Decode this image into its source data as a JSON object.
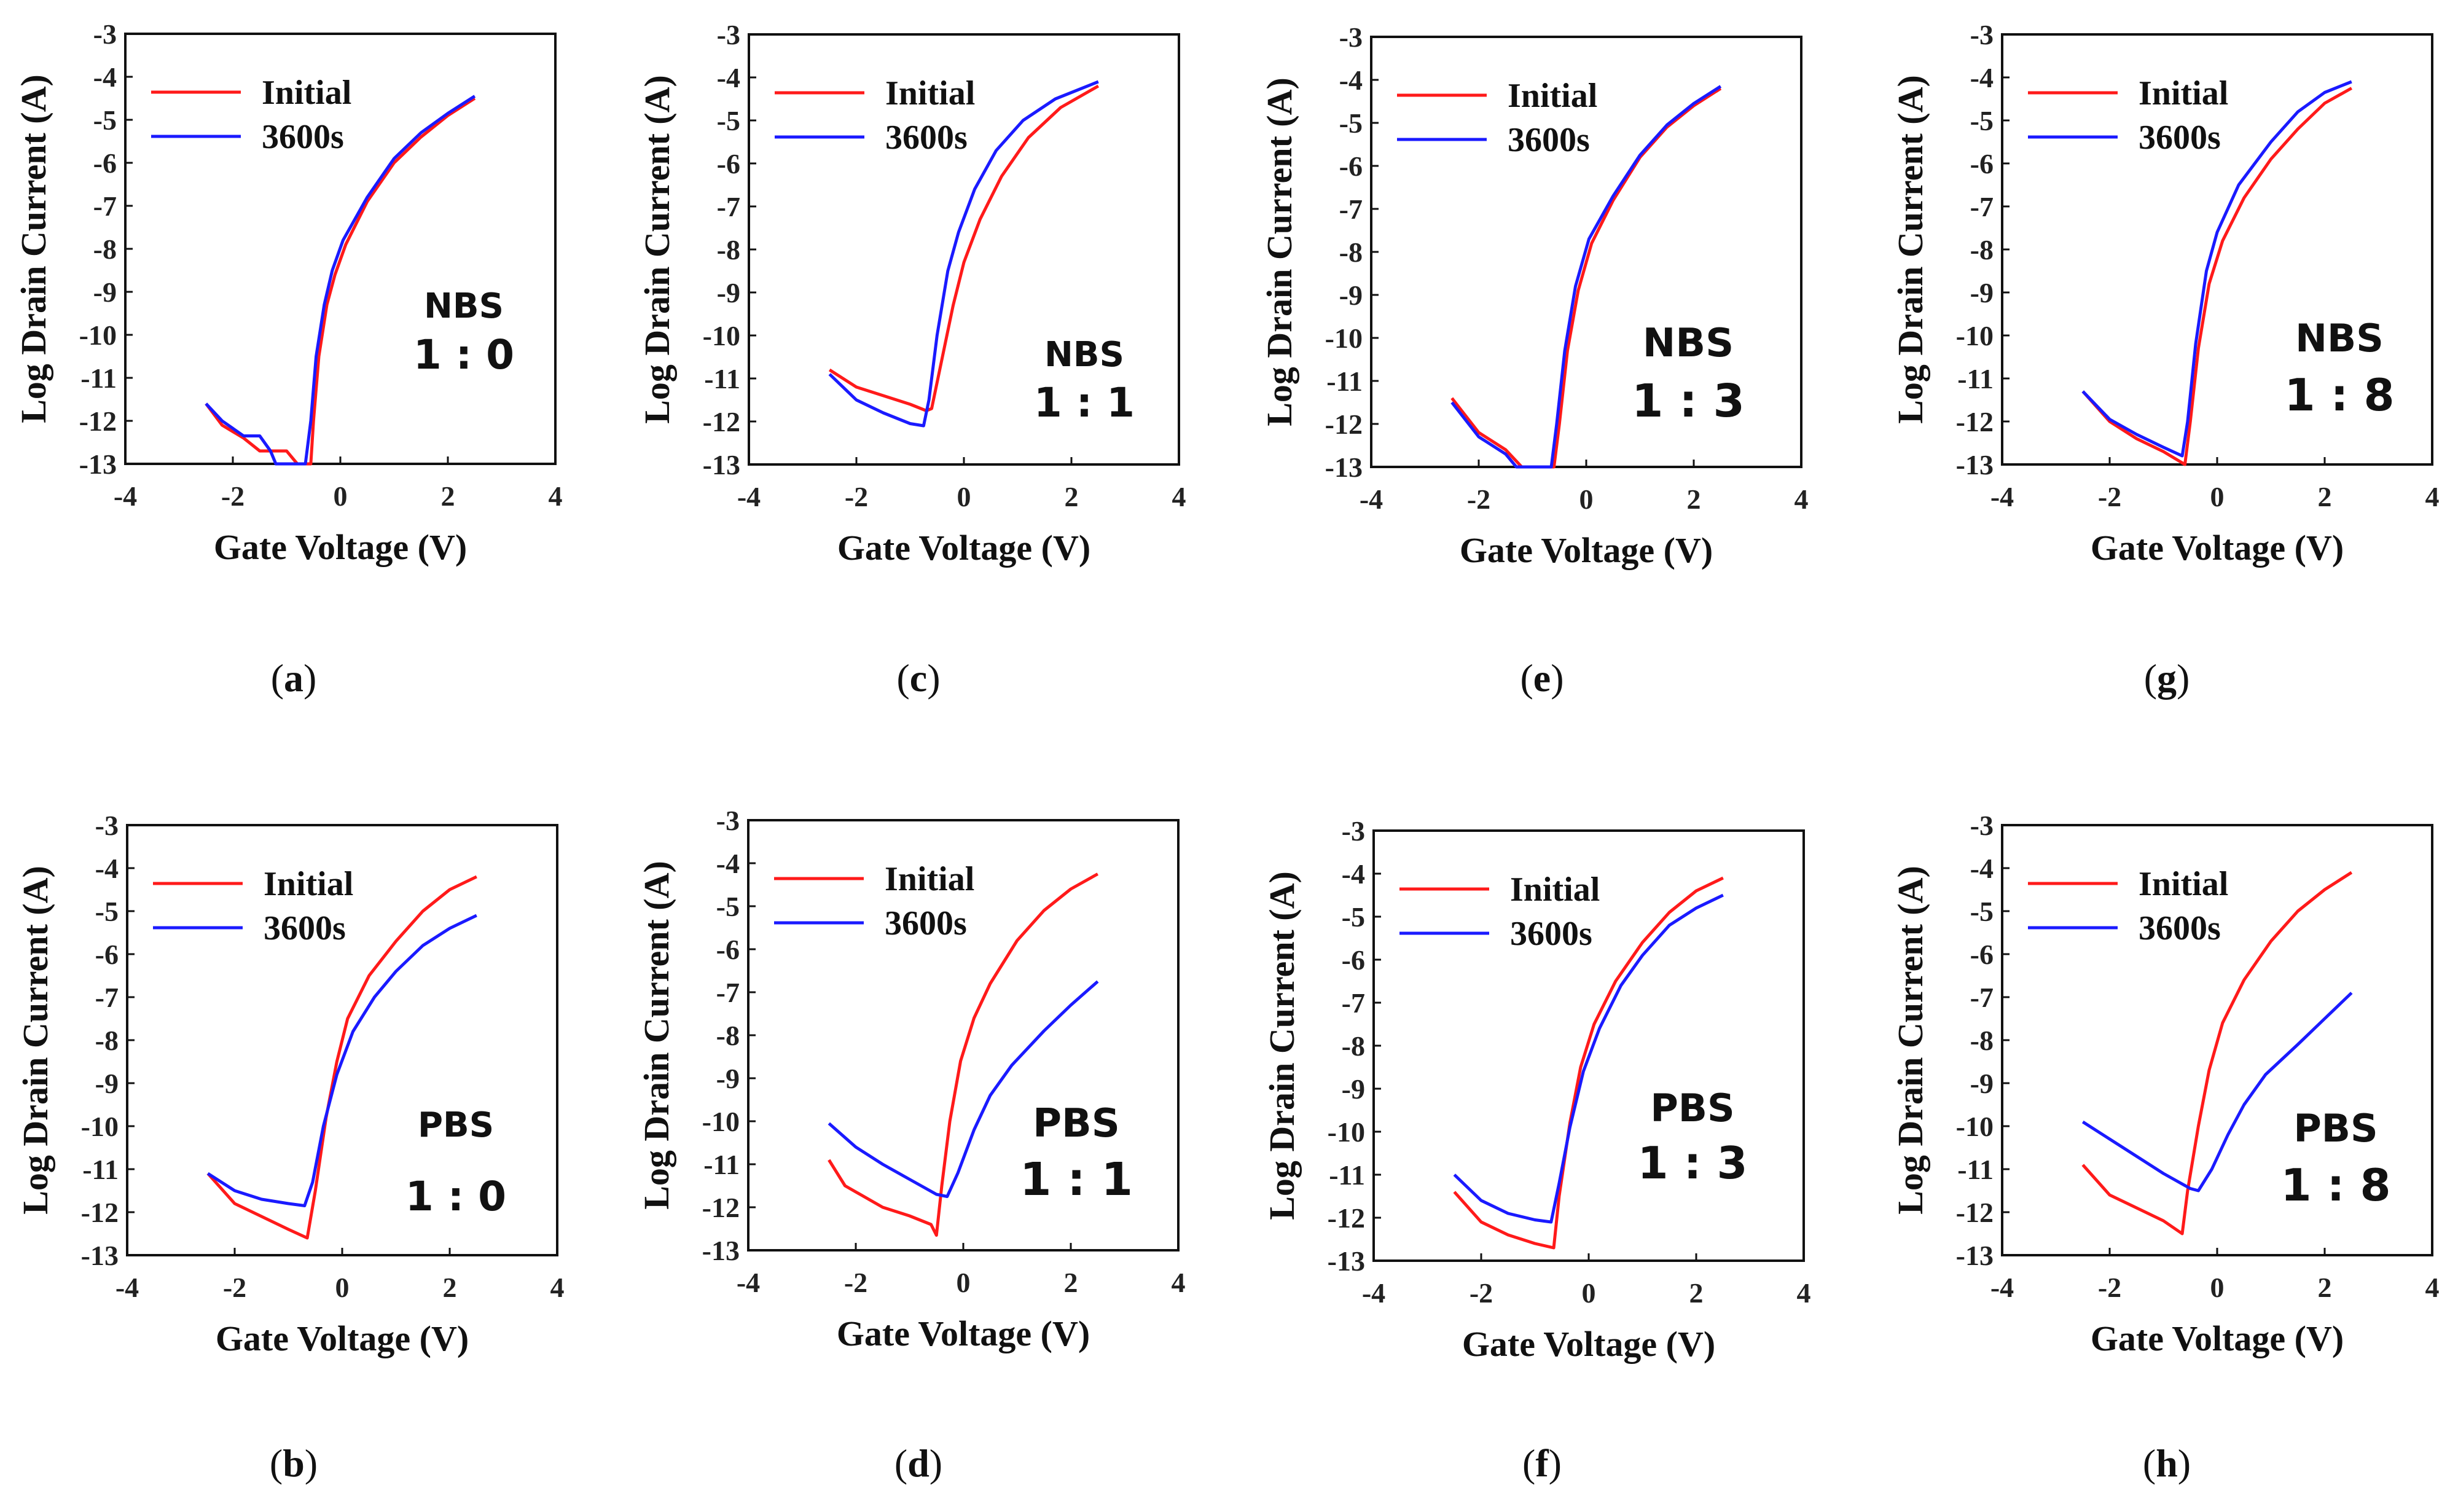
{
  "chart_data": [
    {
      "id": "a",
      "type": "line",
      "caption_letter": "a",
      "annotation": [
        "NBS",
        "1 : 0"
      ],
      "xlabel": "Gate Voltage (V)",
      "ylabel": "Log Drain Current (A)",
      "xlim": [
        -4,
        4
      ],
      "ylim": [
        -13,
        -3
      ],
      "xticks": [
        "-4",
        "-2",
        "0",
        "2",
        "4"
      ],
      "yticks": [
        "-3",
        "-4",
        "-5",
        "-6",
        "-7",
        "-8",
        "-9",
        "-10",
        "-11",
        "-12",
        "-13"
      ],
      "legend": {
        "placement": "top-left"
      },
      "series": [
        {
          "name": "Initial",
          "color": "#ff1a1a",
          "x": [
            -2.5,
            -2.2,
            -1.8,
            -1.5,
            -1.0,
            -0.8,
            -0.55,
            -0.5,
            -0.4,
            -0.25,
            -0.1,
            0.1,
            0.5,
            1,
            1.5,
            2,
            2.5
          ],
          "y": [
            -11.6,
            -12.1,
            -12.4,
            -12.7,
            -12.7,
            -13,
            -13,
            -12,
            -10.5,
            -9.3,
            -8.6,
            -7.9,
            -6.9,
            -6.0,
            -5.4,
            -4.9,
            -4.5
          ]
        },
        {
          "name": "3600s",
          "color": "#1a1aff",
          "x": [
            -2.5,
            -2.2,
            -1.8,
            -1.5,
            -1.3,
            -1.2,
            -0.65,
            -0.55,
            -0.45,
            -0.3,
            -0.15,
            0.05,
            0.5,
            1,
            1.5,
            2,
            2.5
          ],
          "y": [
            -11.6,
            -12.0,
            -12.35,
            -12.35,
            -12.7,
            -13,
            -13,
            -12,
            -10.5,
            -9.3,
            -8.5,
            -7.8,
            -6.8,
            -5.9,
            -5.3,
            -4.85,
            -4.45
          ]
        }
      ]
    },
    {
      "id": "c",
      "type": "line",
      "caption_letter": "c",
      "annotation": [
        "NBS",
        "1 : 1"
      ],
      "xlabel": "Gate Voltage (V)",
      "ylabel": "Log Drain Current (A)",
      "xlim": [
        -4,
        4
      ],
      "ylim": [
        -13,
        -3
      ],
      "xticks": [
        "-4",
        "-2",
        "0",
        "2",
        "4"
      ],
      "yticks": [
        "-3",
        "-4",
        "-5",
        "-6",
        "-7",
        "-8",
        "-9",
        "-10",
        "-11",
        "-12",
        "-13"
      ],
      "legend": {
        "placement": "top-left"
      },
      "series": [
        {
          "name": "Initial",
          "color": "#ff1a1a",
          "x": [
            -2.5,
            -2,
            -1.5,
            -1,
            -0.7,
            -0.6,
            -0.4,
            -0.2,
            0,
            0.3,
            0.7,
            1.2,
            1.8,
            2.5
          ],
          "y": [
            -10.8,
            -11.2,
            -11.4,
            -11.6,
            -11.75,
            -11.7,
            -10.5,
            -9.3,
            -8.3,
            -7.3,
            -6.3,
            -5.4,
            -4.7,
            -4.2
          ]
        },
        {
          "name": "3600s",
          "color": "#1a1aff",
          "x": [
            -2.5,
            -2,
            -1.5,
            -1,
            -0.75,
            -0.65,
            -0.5,
            -0.3,
            -0.1,
            0.2,
            0.6,
            1.1,
            1.7,
            2.5
          ],
          "y": [
            -10.9,
            -11.5,
            -11.8,
            -12.05,
            -12.1,
            -11.5,
            -10,
            -8.5,
            -7.6,
            -6.6,
            -5.7,
            -5,
            -4.5,
            -4.1
          ]
        }
      ]
    },
    {
      "id": "e",
      "type": "line",
      "caption_letter": "e",
      "annotation": [
        "NBS",
        "1 : 3"
      ],
      "xlabel": "Gate Voltage (V)",
      "ylabel": "Log Drain Current (A)",
      "xlim": [
        -4,
        4
      ],
      "ylim": [
        -13,
        -3
      ],
      "xticks": [
        "-4",
        "-2",
        "0",
        "2",
        "4"
      ],
      "yticks": [
        "-3",
        "-4",
        "-5",
        "-6",
        "-7",
        "-8",
        "-9",
        "-10",
        "-11",
        "-12",
        "-13"
      ],
      "legend": {
        "placement": "top-left"
      },
      "series": [
        {
          "name": "Initial",
          "color": "#ff1a1a",
          "x": [
            -2.5,
            -2,
            -1.5,
            -1.2,
            -0.6,
            -0.5,
            -0.35,
            -0.15,
            0.1,
            0.5,
            1,
            1.5,
            2,
            2.5
          ],
          "y": [
            -11.4,
            -12.2,
            -12.6,
            -13,
            -13,
            -12,
            -10.3,
            -8.9,
            -7.8,
            -6.8,
            -5.8,
            -5.1,
            -4.6,
            -4.2
          ]
        },
        {
          "name": "3600s",
          "color": "#1a1aff",
          "x": [
            -2.5,
            -2,
            -1.5,
            -1.3,
            -0.65,
            -0.55,
            -0.4,
            -0.2,
            0.05,
            0.5,
            1,
            1.5,
            2,
            2.5
          ],
          "y": [
            -11.5,
            -12.3,
            -12.7,
            -13,
            -13,
            -12,
            -10.3,
            -8.8,
            -7.7,
            -6.7,
            -5.75,
            -5.05,
            -4.55,
            -4.15
          ]
        }
      ]
    },
    {
      "id": "g",
      "type": "line",
      "caption_letter": "g",
      "annotation": [
        "NBS",
        "1 : 8"
      ],
      "xlabel": "Gate Voltage (V)",
      "ylabel": "Log Drain Current (A)",
      "xlim": [
        -4,
        4
      ],
      "ylim": [
        -13,
        -3
      ],
      "xticks": [
        "-4",
        "-2",
        "0",
        "2",
        "4"
      ],
      "yticks": [
        "-3",
        "-4",
        "-5",
        "-6",
        "-7",
        "-8",
        "-9",
        "-10",
        "-11",
        "-12",
        "-13"
      ],
      "legend": {
        "placement": "top-left"
      },
      "series": [
        {
          "name": "Initial",
          "color": "#ff1a1a",
          "x": [
            -2.5,
            -2,
            -1.5,
            -1,
            -0.6,
            -0.5,
            -0.35,
            -0.15,
            0.1,
            0.5,
            1,
            1.5,
            2,
            2.5
          ],
          "y": [
            -11.3,
            -12,
            -12.4,
            -12.7,
            -13,
            -12,
            -10.3,
            -8.8,
            -7.8,
            -6.8,
            -5.9,
            -5.2,
            -4.6,
            -4.25
          ]
        },
        {
          "name": "3600s",
          "color": "#1a1aff",
          "x": [
            -2.5,
            -2,
            -1.5,
            -1,
            -0.65,
            -0.55,
            -0.4,
            -0.2,
            0,
            0.4,
            1,
            1.5,
            2,
            2.5
          ],
          "y": [
            -11.3,
            -11.95,
            -12.3,
            -12.6,
            -12.8,
            -12,
            -10.2,
            -8.5,
            -7.6,
            -6.5,
            -5.5,
            -4.8,
            -4.35,
            -4.1
          ]
        }
      ]
    },
    {
      "id": "b",
      "type": "line",
      "caption_letter": "b",
      "annotation": [
        "PBS",
        "1 : 0"
      ],
      "xlabel": "Gate Voltage (V)",
      "ylabel": "Log Drain Current (A)",
      "xlim": [
        -4,
        4
      ],
      "ylim": [
        -13,
        -3
      ],
      "xticks": [
        "-4",
        "-2",
        "0",
        "2",
        "4"
      ],
      "yticks": [
        "-3",
        "-4",
        "-5",
        "-6",
        "-7",
        "-8",
        "-9",
        "-10",
        "-11",
        "-12",
        "-13"
      ],
      "legend": {
        "placement": "top-left"
      },
      "series": [
        {
          "name": "Initial",
          "color": "#ff1a1a",
          "x": [
            -2.5,
            -2,
            -1.5,
            -1,
            -0.65,
            -0.5,
            -0.3,
            -0.1,
            0.1,
            0.5,
            1,
            1.5,
            2,
            2.5
          ],
          "y": [
            -11.1,
            -11.8,
            -12.1,
            -12.4,
            -12.6,
            -11.5,
            -9.8,
            -8.5,
            -7.5,
            -6.5,
            -5.7,
            -5,
            -4.5,
            -4.2
          ]
        },
        {
          "name": "3600s",
          "color": "#1a1aff",
          "x": [
            -2.5,
            -2,
            -1.5,
            -1,
            -0.7,
            -0.55,
            -0.35,
            -0.1,
            0.2,
            0.6,
            1,
            1.5,
            2,
            2.5
          ],
          "y": [
            -11.1,
            -11.5,
            -11.7,
            -11.8,
            -11.85,
            -11.3,
            -10,
            -8.8,
            -7.8,
            -7,
            -6.4,
            -5.8,
            -5.4,
            -5.1
          ]
        }
      ]
    },
    {
      "id": "d",
      "type": "line",
      "caption_letter": "d",
      "annotation": [
        "PBS",
        "1 : 1"
      ],
      "xlabel": "Gate Voltage (V)",
      "ylabel": "Log Drain Current (A)",
      "xlim": [
        -4,
        4
      ],
      "ylim": [
        -13,
        -3
      ],
      "xticks": [
        "-4",
        "-2",
        "0",
        "2",
        "4"
      ],
      "yticks": [
        "-3",
        "-4",
        "-5",
        "-6",
        "-7",
        "-8",
        "-9",
        "-10",
        "-11",
        "-12",
        "-13"
      ],
      "legend": {
        "placement": "top-left"
      },
      "series": [
        {
          "name": "Initial",
          "color": "#ff1a1a",
          "x": [
            -2.5,
            -2.2,
            -1.5,
            -1,
            -0.6,
            -0.5,
            -0.4,
            -0.25,
            -0.05,
            0.2,
            0.5,
            1,
            1.5,
            2,
            2.5
          ],
          "y": [
            -10.9,
            -11.5,
            -12,
            -12.2,
            -12.4,
            -12.65,
            -11.5,
            -10,
            -8.6,
            -7.6,
            -6.8,
            -5.8,
            -5.1,
            -4.6,
            -4.25
          ]
        },
        {
          "name": "3600s",
          "color": "#1a1aff",
          "x": [
            -2.5,
            -2,
            -1.5,
            -1,
            -0.5,
            -0.3,
            -0.1,
            0.2,
            0.5,
            0.9,
            1.5,
            2,
            2.5
          ],
          "y": [
            -10.05,
            -10.6,
            -11,
            -11.35,
            -11.7,
            -11.75,
            -11.2,
            -10.2,
            -9.4,
            -8.7,
            -7.9,
            -7.3,
            -6.75
          ]
        }
      ]
    },
    {
      "id": "f",
      "type": "line",
      "caption_letter": "f",
      "annotation": [
        "PBS",
        "1 : 3"
      ],
      "xlabel": "Gate Voltage (V)",
      "ylabel": "Log Drain Current (A)",
      "xlim": [
        -4,
        4
      ],
      "ylim": [
        -13,
        -3
      ],
      "xticks": [
        "-4",
        "-2",
        "0",
        "2",
        "4"
      ],
      "yticks": [
        "-3",
        "-4",
        "-5",
        "-6",
        "-7",
        "-8",
        "-9",
        "-10",
        "-11",
        "-12",
        "-13"
      ],
      "legend": {
        "placement": "top-left"
      },
      "series": [
        {
          "name": "Initial",
          "color": "#ff1a1a",
          "x": [
            -2.5,
            -2,
            -1.5,
            -1,
            -0.65,
            -0.55,
            -0.35,
            -0.15,
            0.1,
            0.5,
            1,
            1.5,
            2,
            2.5
          ],
          "y": [
            -11.4,
            -12.1,
            -12.4,
            -12.6,
            -12.7,
            -11.5,
            -9.8,
            -8.5,
            -7.5,
            -6.5,
            -5.6,
            -4.9,
            -4.4,
            -4.1
          ]
        },
        {
          "name": "3600s",
          "color": "#1a1aff",
          "x": [
            -2.5,
            -2,
            -1.5,
            -1,
            -0.7,
            -0.55,
            -0.35,
            -0.1,
            0.2,
            0.6,
            1,
            1.5,
            2,
            2.5
          ],
          "y": [
            -11,
            -11.6,
            -11.9,
            -12.05,
            -12.1,
            -11.2,
            -9.9,
            -8.6,
            -7.6,
            -6.6,
            -5.9,
            -5.2,
            -4.8,
            -4.5
          ]
        }
      ]
    },
    {
      "id": "h",
      "type": "line",
      "caption_letter": "h",
      "annotation": [
        "PBS",
        "1 : 8"
      ],
      "xlabel": "Gate Voltage (V)",
      "ylabel": "Log Drain Current (A)",
      "xlim": [
        -4,
        4
      ],
      "ylim": [
        -13,
        -3
      ],
      "xticks": [
        "-4",
        "-2",
        "0",
        "2",
        "4"
      ],
      "yticks": [
        "-3",
        "-4",
        "-5",
        "-6",
        "-7",
        "-8",
        "-9",
        "-10",
        "-11",
        "-12",
        "-13"
      ],
      "legend": {
        "placement": "top-left"
      },
      "series": [
        {
          "name": "Initial",
          "color": "#ff1a1a",
          "x": [
            -2.5,
            -2,
            -1.5,
            -1,
            -0.65,
            -0.55,
            -0.35,
            -0.15,
            0.1,
            0.5,
            1,
            1.5,
            2,
            2.5
          ],
          "y": [
            -10.9,
            -11.6,
            -11.9,
            -12.2,
            -12.5,
            -11.5,
            -10,
            -8.7,
            -7.6,
            -6.6,
            -5.7,
            -5,
            -4.5,
            -4.1
          ]
        },
        {
          "name": "3600s",
          "color": "#1a1aff",
          "x": [
            -2.5,
            -2,
            -1.5,
            -1,
            -0.5,
            -0.35,
            -0.1,
            0.2,
            0.5,
            0.9,
            1.5,
            2,
            2.5
          ],
          "y": [
            -9.9,
            -10.3,
            -10.7,
            -11.1,
            -11.45,
            -11.5,
            -11,
            -10.2,
            -9.5,
            -8.8,
            -8.1,
            -7.5,
            -6.9
          ]
        }
      ]
    }
  ]
}
